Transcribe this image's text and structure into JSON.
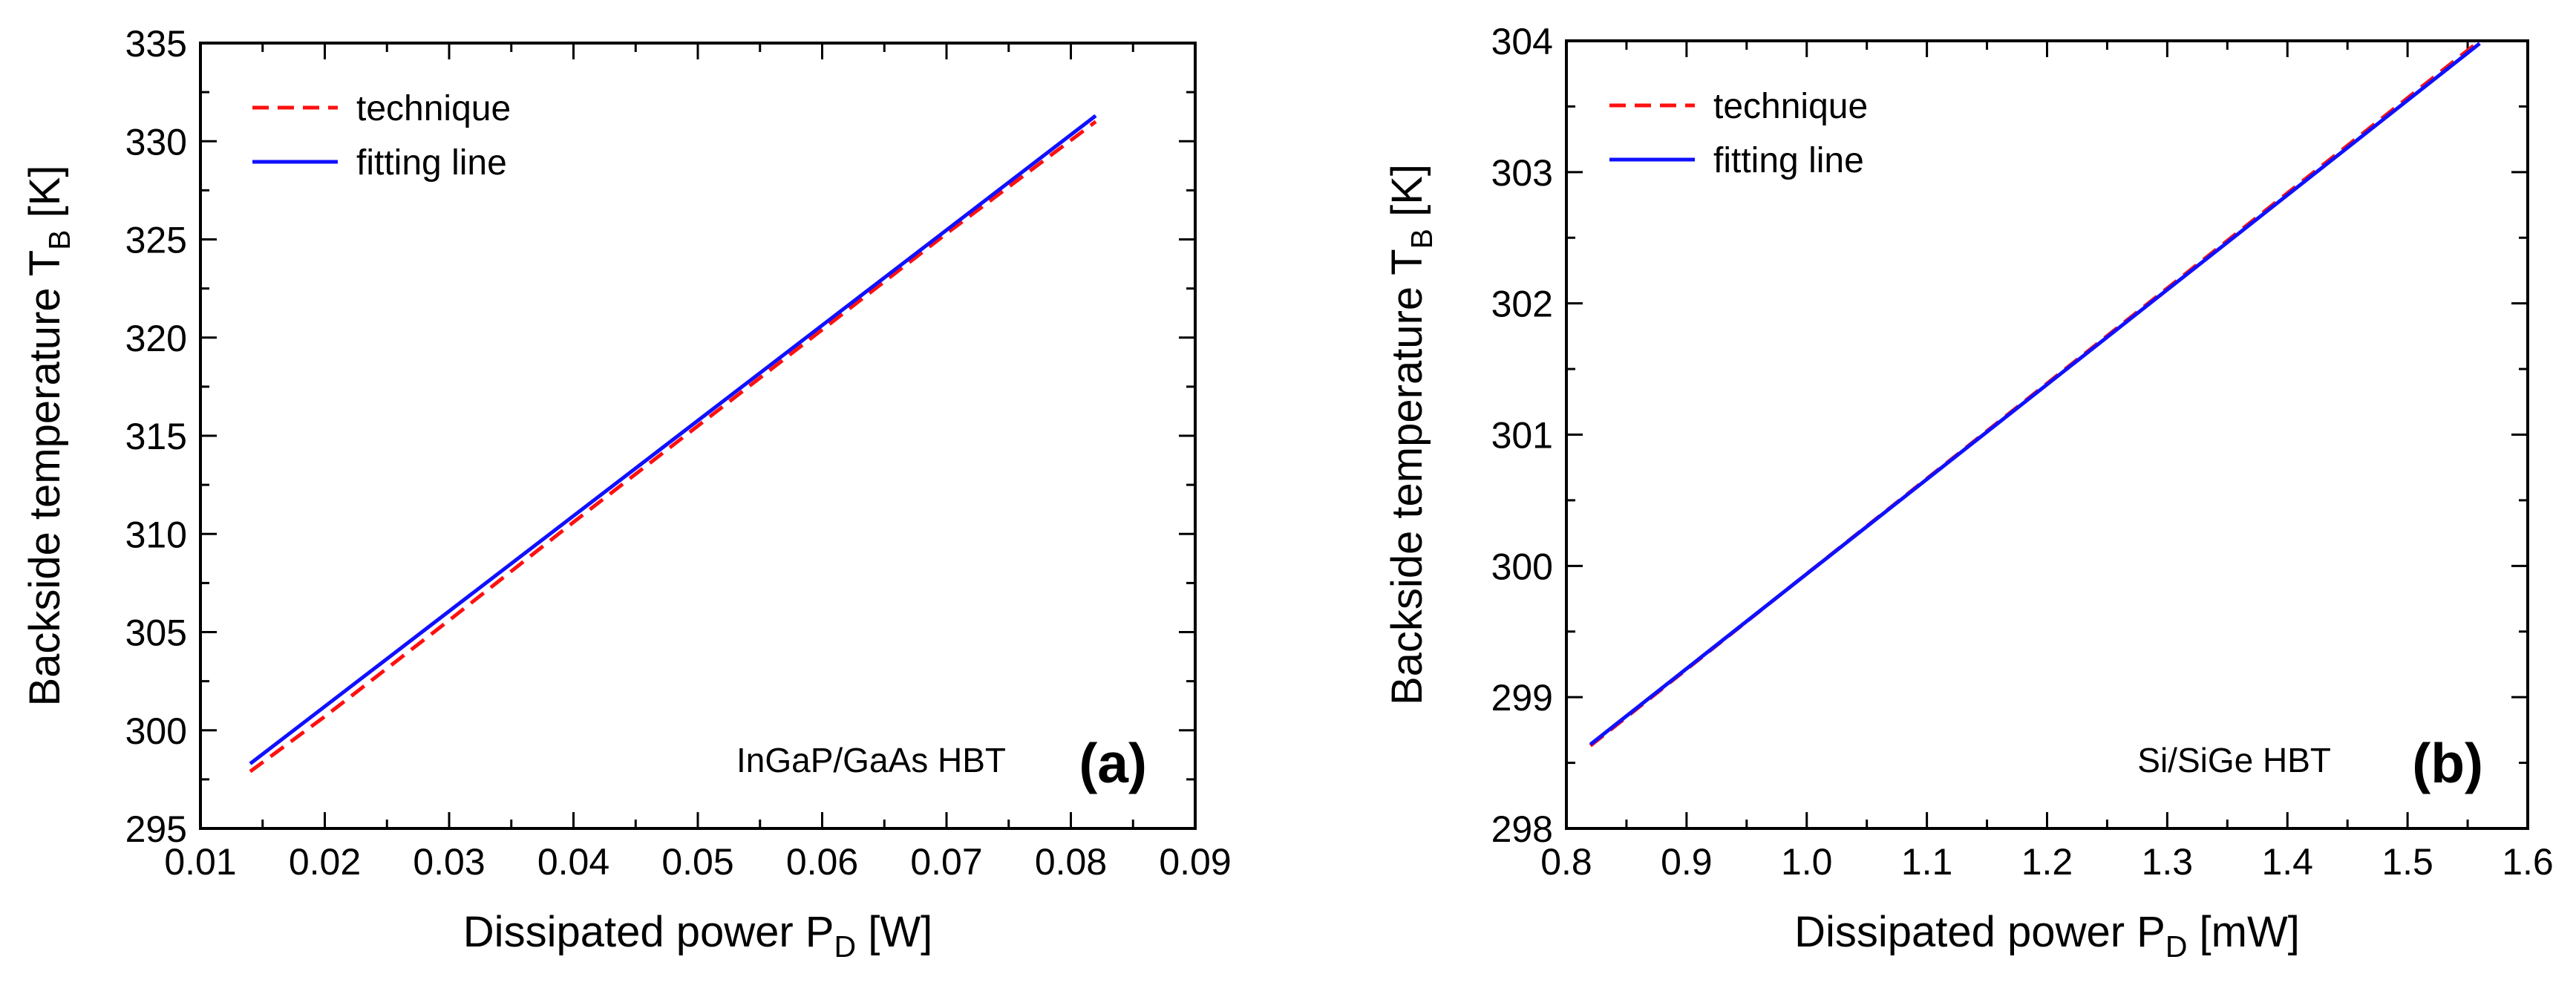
{
  "chart_data": [
    {
      "type": "line",
      "panel_label": "(a)",
      "annotation": "InGaP/GaAs HBT",
      "xlabel_main": "Dissipated power P",
      "xlabel_sub": "D",
      "xlabel_unit": " [W]",
      "ylabel_main": "Backside temperature T",
      "ylabel_sub": "B",
      "ylabel_unit": " [K]",
      "xlim": [
        0.01,
        0.09
      ],
      "ylim": [
        295,
        335
      ],
      "xticks": [
        0.01,
        0.02,
        0.03,
        0.04,
        0.05,
        0.06,
        0.07,
        0.08,
        0.09
      ],
      "xtick_labels": [
        "0.01",
        "0.02",
        "0.03",
        "0.04",
        "0.05",
        "0.06",
        "0.07",
        "0.08",
        "0.09"
      ],
      "yticks": [
        295,
        300,
        305,
        310,
        315,
        320,
        325,
        330,
        335
      ],
      "ytick_labels": [
        "295",
        "300",
        "305",
        "310",
        "315",
        "320",
        "325",
        "330",
        "335"
      ],
      "legend_position": "top-left",
      "series": [
        {
          "name": "technique",
          "color": "#ff1010",
          "style": "dashed",
          "x": [
            0.014,
            0.02,
            0.03,
            0.04,
            0.05,
            0.06,
            0.07,
            0.082
          ],
          "y": [
            297.9,
            300.7,
            305.6,
            310.6,
            315.5,
            320.4,
            325.3,
            331.0
          ]
        },
        {
          "name": "fitting line",
          "color": "#1010ff",
          "style": "solid",
          "x": [
            0.014,
            0.082
          ],
          "y": [
            298.3,
            331.3
          ]
        }
      ]
    },
    {
      "type": "line",
      "panel_label": "(b)",
      "annotation": "Si/SiGe HBT",
      "xlabel_main": "Dissipated power P",
      "xlabel_sub": "D",
      "xlabel_unit": " [mW]",
      "ylabel_main": "Backside temperature T",
      "ylabel_sub": "B",
      "ylabel_unit": " [K]",
      "xlim": [
        0.8,
        1.6
      ],
      "ylim": [
        298,
        304
      ],
      "xticks": [
        0.8,
        0.9,
        1.0,
        1.1,
        1.2,
        1.3,
        1.4,
        1.5,
        1.6
      ],
      "xtick_labels": [
        "0.8",
        "0.9",
        "1.0",
        "1.1",
        "1.2",
        "1.3",
        "1.4",
        "1.5",
        "1.6"
      ],
      "yticks": [
        298,
        299,
        300,
        301,
        302,
        303,
        304
      ],
      "ytick_labels": [
        "298",
        "299",
        "300",
        "301",
        "302",
        "303",
        "304"
      ],
      "legend_position": "top-left",
      "series": [
        {
          "name": "technique",
          "color": "#ff1010",
          "style": "dashed",
          "x": [
            0.82,
            1.0,
            1.2,
            1.4,
            1.56
          ],
          "y": [
            298.63,
            299.94,
            301.39,
            302.84,
            304.0
          ]
        },
        {
          "name": "fitting line",
          "color": "#1010ff",
          "style": "solid",
          "x": [
            0.82,
            1.56
          ],
          "y": [
            298.64,
            303.98
          ]
        }
      ]
    }
  ]
}
